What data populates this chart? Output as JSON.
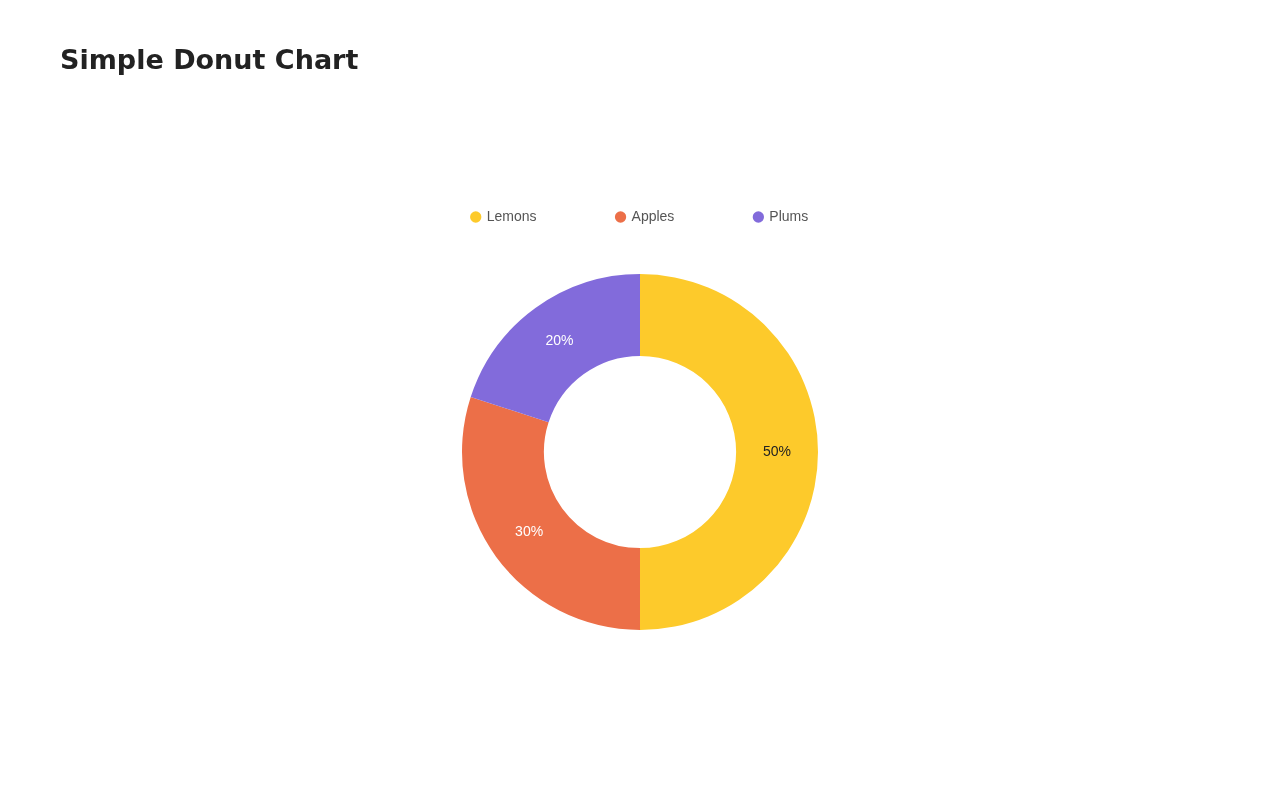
{
  "chart_data": {
    "type": "donut",
    "title": "Simple Donut Chart",
    "categories": [
      "Lemons",
      "Apples",
      "Plums"
    ],
    "values": [
      50,
      30,
      20
    ],
    "colors": [
      "#fdca2b",
      "#ec6f48",
      "#826bdb"
    ],
    "value_labels": [
      "50%",
      "30%",
      "20%"
    ],
    "legend": "top"
  }
}
